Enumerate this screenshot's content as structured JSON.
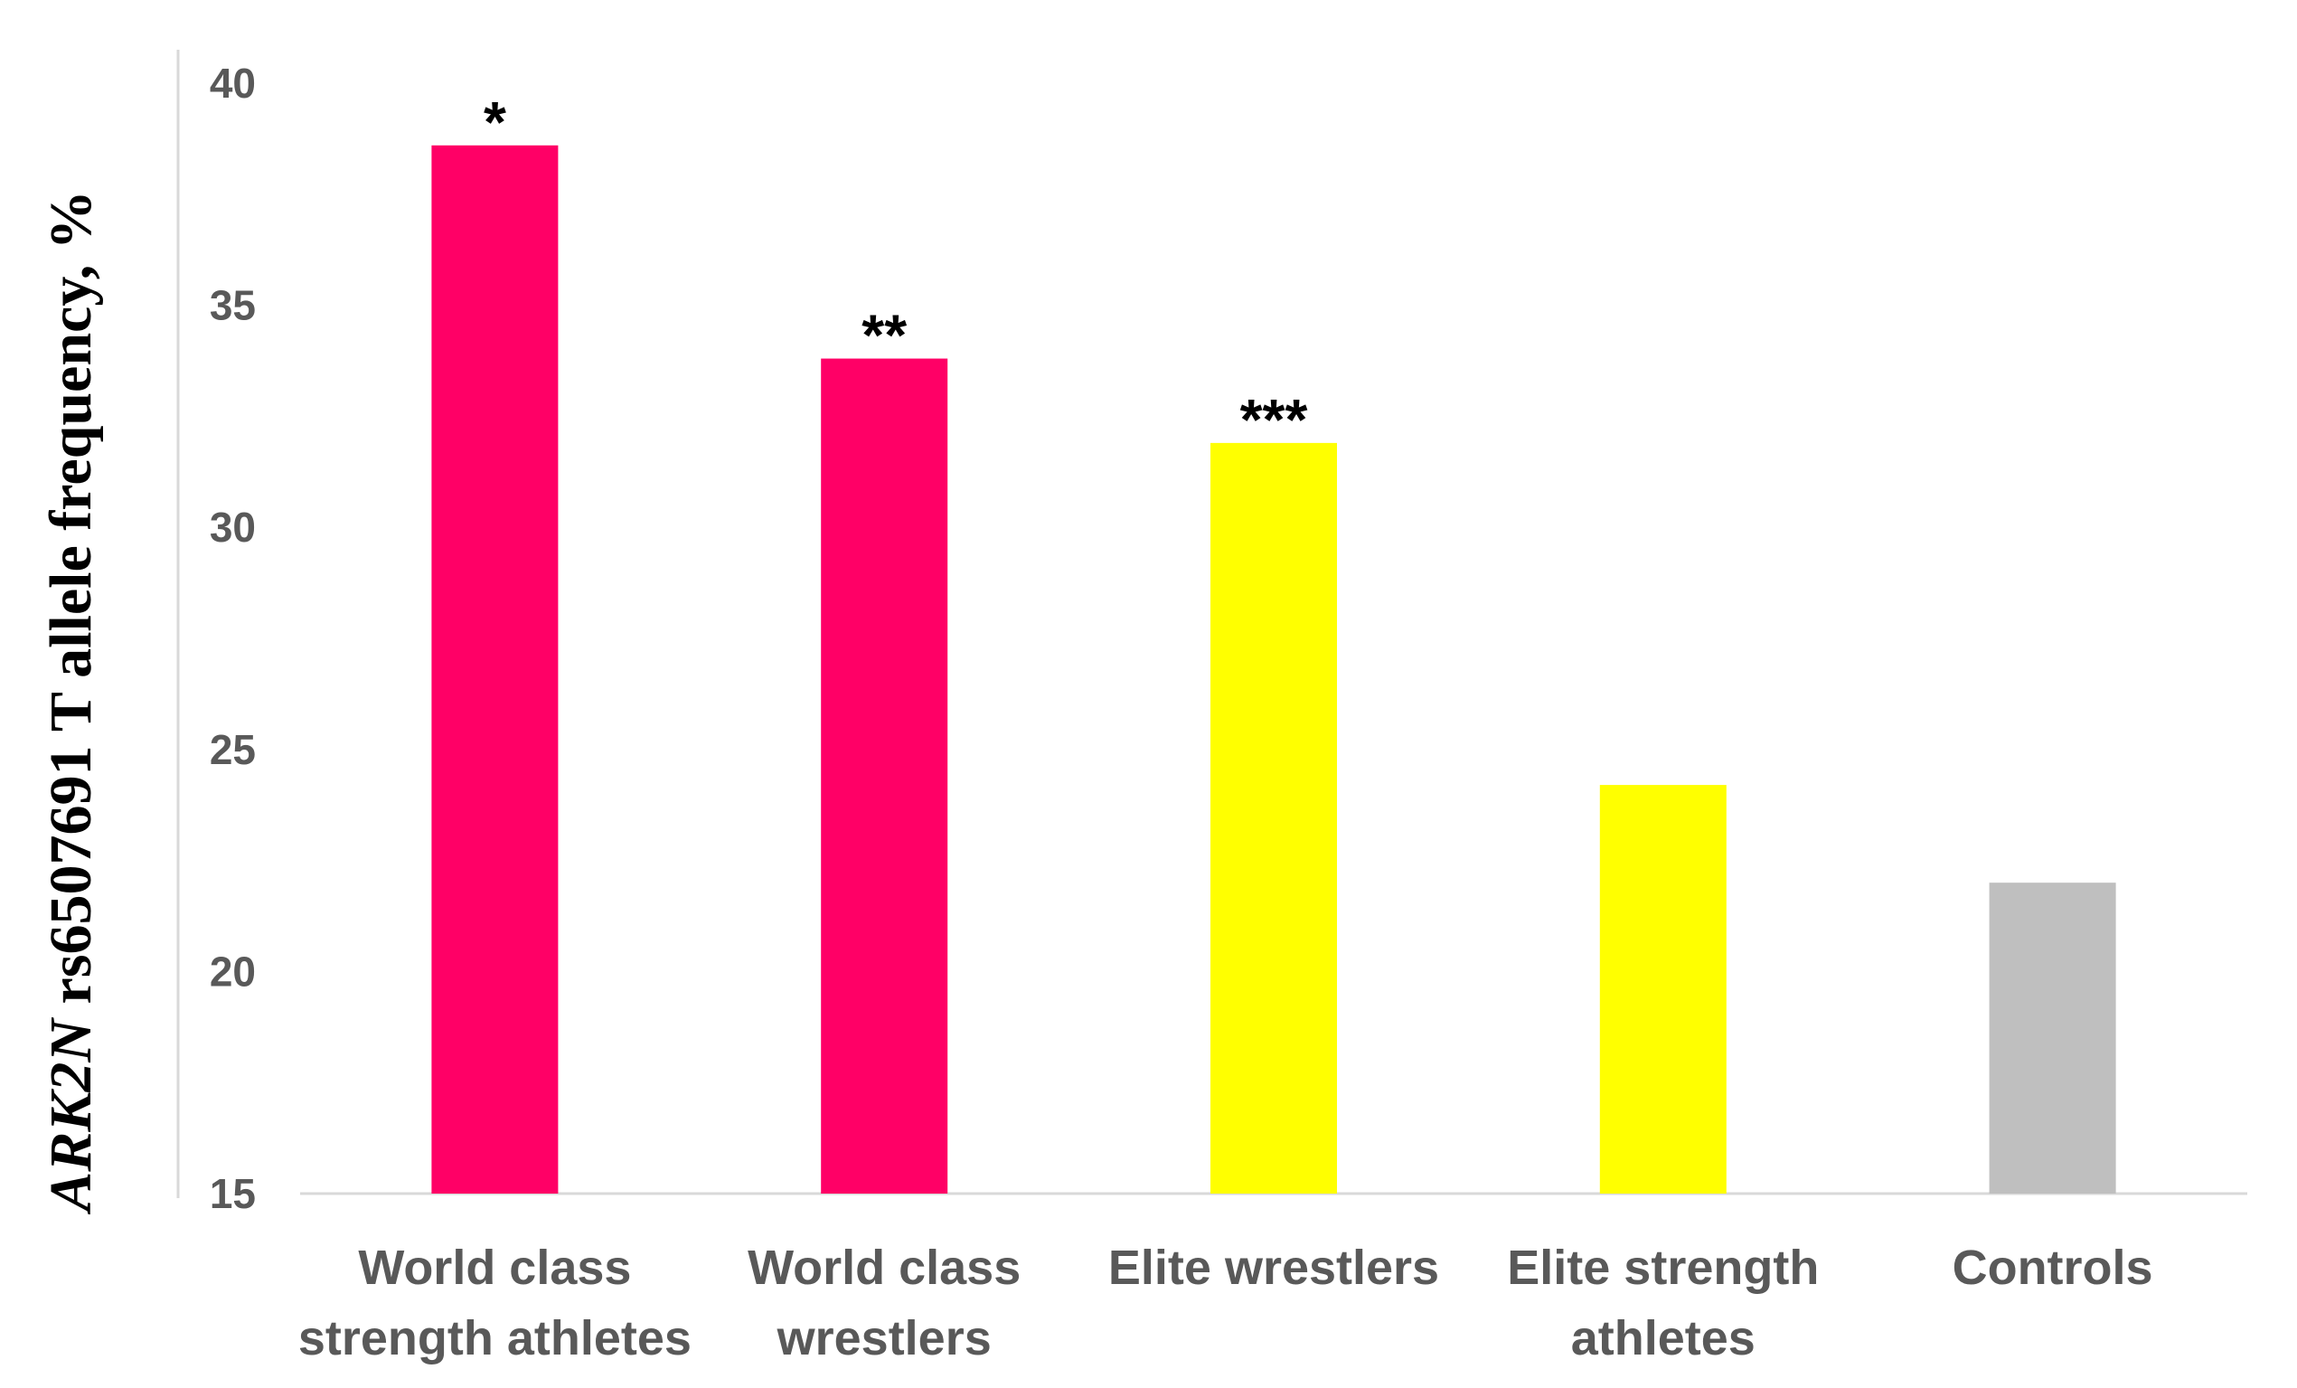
{
  "chart_data": {
    "type": "bar",
    "categories": [
      [
        "World class",
        "strength athletes"
      ],
      [
        "World class",
        "wrestlers"
      ],
      [
        "Elite wrestlers"
      ],
      [
        "Elite strength",
        "athletes"
      ],
      [
        "Controls"
      ]
    ],
    "values": [
      38.6,
      33.8,
      31.9,
      24.2,
      22.0
    ],
    "significance": [
      "*",
      "**",
      "***",
      "",
      ""
    ],
    "bar_colors": [
      "#FF0066",
      "#FF0066",
      "#FFFF00",
      "#FFFF00",
      "#BFBFBF"
    ],
    "ylabel_italic": "ARK2N",
    "ylabel_rest": " rs6507691 T allele frequency, %",
    "ylim": [
      15,
      40
    ],
    "yticks": [
      "15",
      "20",
      "25",
      "30",
      "35",
      "40"
    ],
    "grid": false,
    "legend": "none"
  }
}
